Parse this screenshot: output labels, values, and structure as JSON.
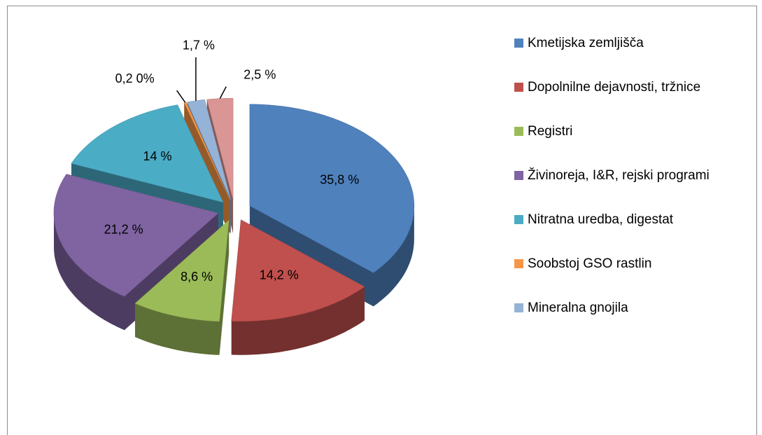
{
  "chart_data": {
    "type": "pie",
    "categories": [
      "Kmetijska zemljišča",
      "Dopolnilne dejavnosti, tržnice",
      "Registri",
      "Živinoreja, I&R, rejski programi",
      "Nitratna uredba, digestat",
      "Soobstoj GSO rastlin",
      "Mineralna gnojila",
      null
    ],
    "values": [
      35.8,
      14.2,
      8.6,
      21.2,
      14,
      0.2,
      1.7,
      2.5
    ],
    "value_labels": [
      "35,8 %",
      "14,2 %",
      "8,6 %",
      "21,2 %",
      "14 %",
      "0,2 0%",
      "1,7 %",
      "2,5 %"
    ],
    "colors": [
      "#4f81bd",
      "#c0504d",
      "#9bbb59",
      "#8064a2",
      "#4bacc6",
      "#f79646",
      "#95b3d7",
      "#d99694"
    ],
    "legend": "right"
  }
}
